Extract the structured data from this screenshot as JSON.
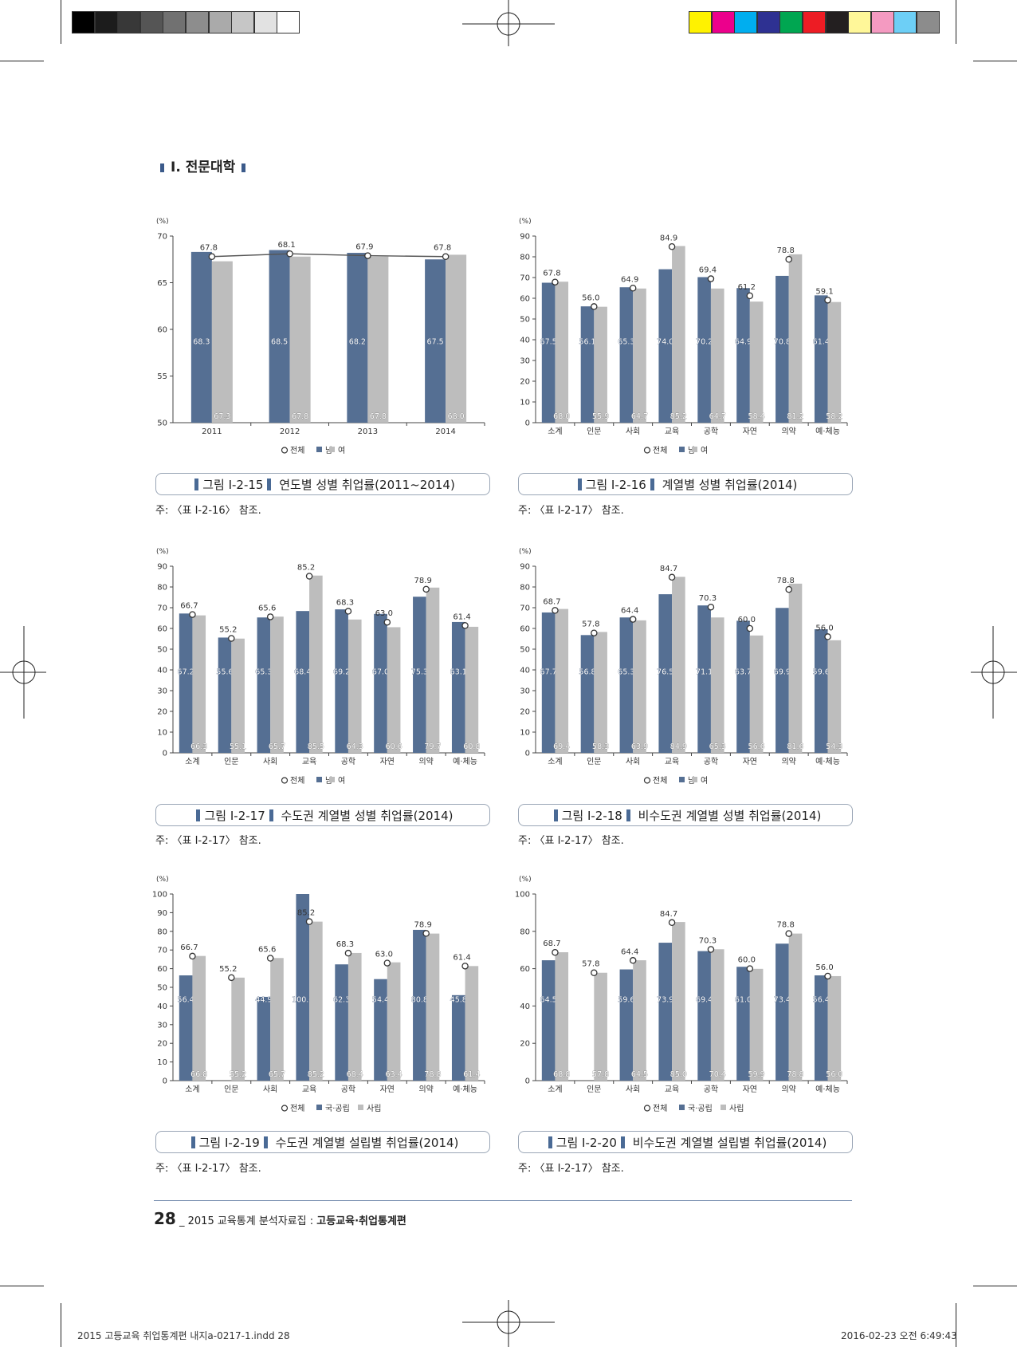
{
  "header": {
    "section_title": "Ⅰ. 전문대학",
    "gray_swatches": [
      "#000000",
      "#1c1c1c",
      "#383838",
      "#555555",
      "#717171",
      "#8d8d8d",
      "#aaaaaa",
      "#c6c6c6",
      "#e2e2e2",
      "#ffffff"
    ],
    "color_swatches": [
      "#fff200",
      "#ec008c",
      "#00aeef",
      "#2e3192",
      "#00a651",
      "#ed1c24",
      "#231f20",
      "#fff799",
      "#f49ac1",
      "#6dcff6",
      "#8c8c8c"
    ]
  },
  "colors": {
    "male": "#556f93",
    "female": "#bdbdbd",
    "total_line": "#555555"
  },
  "charts": [
    {
      "id": "fig-15",
      "unit": "(%)",
      "caption_label": "그림 Ⅰ-2-15",
      "caption_title": "연도별 성별 취업률(2011~2014)",
      "note": "주: 〈표 Ⅰ-2-16〉 참조.",
      "legend": [
        "전체",
        "남",
        "여"
      ]
    },
    {
      "id": "fig-16",
      "unit": "(%)",
      "caption_label": "그림 Ⅰ-2-16",
      "caption_title": "계열별 성별 취업률(2014)",
      "note": "주: 〈표 Ⅰ-2-17〉 참조.",
      "legend": [
        "전체",
        "남",
        "여"
      ]
    },
    {
      "id": "fig-17",
      "unit": "(%)",
      "caption_label": "그림 Ⅰ-2-17",
      "caption_title": "수도권 계열별 성별 취업률(2014)",
      "note": "주: 〈표 Ⅰ-2-17〉 참조.",
      "legend": [
        "전체",
        "남",
        "여"
      ]
    },
    {
      "id": "fig-18",
      "unit": "(%)",
      "caption_label": "그림 Ⅰ-2-18",
      "caption_title": "비수도권 계열별 성별 취업률(2014)",
      "note": "주: 〈표 Ⅰ-2-17〉 참조.",
      "legend": [
        "전체",
        "남",
        "여"
      ]
    },
    {
      "id": "fig-19",
      "unit": "(%)",
      "caption_label": "그림 Ⅰ-2-19",
      "caption_title": "수도권 계열별 설립별 취업률(2014)",
      "note": "주: 〈표 Ⅰ-2-17〉 참조.",
      "legend": [
        "전체",
        "국·공립",
        "사립"
      ]
    },
    {
      "id": "fig-20",
      "unit": "(%)",
      "caption_label": "그림 Ⅰ-2-20",
      "caption_title": "비수도권 계열별 설립별 취업률(2014)",
      "note": "주: 〈표 Ⅰ-2-17〉 참조.",
      "legend": [
        "전체",
        "국·공립",
        "사립"
      ]
    }
  ],
  "chart_data": [
    {
      "type": "bar",
      "categories": [
        "2011",
        "2012",
        "2013",
        "2014"
      ],
      "ylim": [
        50,
        70
      ],
      "yticks": [
        50,
        55,
        60,
        65,
        70
      ],
      "series": [
        {
          "name": "남",
          "values": [
            68.3,
            68.5,
            68.2,
            67.5
          ],
          "labels": [
            "68.3",
            "68.5",
            "68.2",
            "67.5"
          ]
        },
        {
          "name": "여",
          "values": [
            67.3,
            67.8,
            67.8,
            68.0
          ],
          "labels": [
            "67.3",
            "67.8",
            "67.8",
            "68.0"
          ]
        },
        {
          "name": "전체",
          "values": [
            67.8,
            68.1,
            67.9,
            67.8
          ],
          "labels": [
            "67.8",
            "68.1",
            "67.9",
            "67.8"
          ]
        }
      ]
    },
    {
      "type": "bar",
      "categories": [
        "소계",
        "인문",
        "사회",
        "교육",
        "공학",
        "자연",
        "의약",
        "예·체능"
      ],
      "ylim": [
        0,
        90
      ],
      "yticks": [
        0,
        10,
        20,
        30,
        40,
        50,
        60,
        70,
        80,
        90
      ],
      "series": [
        {
          "name": "남",
          "values": [
            67.5,
            56.1,
            65.3,
            74.0,
            70.2,
            64.9,
            70.8,
            61.4
          ],
          "labels": [
            "67.5",
            "56.1",
            "65.3",
            "74.0",
            "70.2",
            "64.9",
            "70.8",
            "61.4"
          ]
        },
        {
          "name": "여",
          "values": [
            68.0,
            55.9,
            64.7,
            85.2,
            64.7,
            58.4,
            81.2,
            58.2
          ],
          "labels": [
            "68.0",
            "55.9",
            "64.7",
            "85.2",
            "64.7",
            "58.4",
            "81.2",
            "58.2"
          ]
        },
        {
          "name": "전체",
          "values": [
            67.8,
            56.0,
            64.9,
            84.9,
            69.4,
            61.2,
            78.8,
            59.1
          ],
          "labels": [
            "67.8",
            "56.0",
            "64.9",
            "84.9",
            "69.4",
            "61.2",
            "78.8",
            "59.1"
          ]
        }
      ]
    },
    {
      "type": "bar",
      "categories": [
        "소계",
        "인문",
        "사회",
        "교육",
        "공학",
        "자연",
        "의약",
        "예·체능"
      ],
      "ylim": [
        0,
        90
      ],
      "yticks": [
        0,
        10,
        20,
        30,
        40,
        50,
        60,
        70,
        80,
        90
      ],
      "series": [
        {
          "name": "남",
          "values": [
            67.2,
            55.6,
            65.3,
            68.4,
            69.2,
            67.0,
            75.3,
            63.1
          ],
          "labels": [
            "67.2",
            "55.6",
            "65.3",
            "68.4",
            "69.2",
            "67.0",
            "75.3",
            "63.1"
          ]
        },
        {
          "name": "여",
          "values": [
            66.3,
            55.1,
            65.7,
            85.5,
            64.3,
            60.6,
            79.7,
            60.8
          ],
          "labels": [
            "66.3",
            "55.1",
            "65.7",
            "85.5",
            "64.3",
            "60.6",
            "79.7",
            "60.8"
          ]
        },
        {
          "name": "전체",
          "values": [
            66.7,
            55.2,
            65.6,
            85.2,
            68.3,
            63.0,
            78.9,
            61.4
          ],
          "labels": [
            "66.7",
            "55.2",
            "65.6",
            "85.2",
            "68.3",
            "63.0",
            "78.9",
            "61.4"
          ]
        }
      ]
    },
    {
      "type": "bar",
      "categories": [
        "소계",
        "인문",
        "사회",
        "교육",
        "공학",
        "자연",
        "의약",
        "예·체능"
      ],
      "ylim": [
        0,
        90
      ],
      "yticks": [
        0,
        10,
        20,
        30,
        40,
        50,
        60,
        70,
        80,
        90
      ],
      "series": [
        {
          "name": "남",
          "values": [
            67.7,
            56.8,
            65.3,
            76.5,
            71.1,
            63.7,
            69.9,
            59.6
          ],
          "labels": [
            "67.7",
            "56.8",
            "65.3",
            "76.5",
            "71.1",
            "63.7",
            "69.9",
            "59.6"
          ]
        },
        {
          "name": "여",
          "values": [
            69.4,
            58.3,
            63.9,
            84.9,
            65.3,
            56.6,
            81.6,
            54.3
          ],
          "labels": [
            "69.4",
            "58.3",
            "63.9",
            "84.9",
            "65.3",
            "56.6",
            "81.6",
            "54.3"
          ]
        },
        {
          "name": "전체",
          "values": [
            68.7,
            57.8,
            64.4,
            84.7,
            70.3,
            60.0,
            78.8,
            56.0
          ],
          "labels": [
            "68.7",
            "57.8",
            "64.4",
            "84.7",
            "70.3",
            "60.0",
            "78.8",
            "56.0"
          ]
        }
      ]
    },
    {
      "type": "bar",
      "categories": [
        "소계",
        "인문",
        "사회",
        "교육",
        "공학",
        "자연",
        "의약",
        "예·체능"
      ],
      "ylim": [
        0,
        100
      ],
      "yticks": [
        0,
        10,
        20,
        30,
        40,
        50,
        60,
        70,
        80,
        90,
        100
      ],
      "series": [
        {
          "name": "국·공립",
          "values": [
            56.4,
            null,
            44.9,
            100.0,
            62.3,
            54.4,
            80.8,
            45.8
          ],
          "labels": [
            "56.4",
            "",
            "44.9",
            "100.0",
            "62.3",
            "54.4",
            "80.8",
            "45.8"
          ]
        },
        {
          "name": "사립",
          "values": [
            66.8,
            55.2,
            65.7,
            85.2,
            68.4,
            63.4,
            78.8,
            61.4
          ],
          "labels": [
            "66.8",
            "55.2",
            "65.7",
            "85.2",
            "68.4",
            "63.4",
            "78.8",
            "61.4"
          ]
        },
        {
          "name": "전체",
          "values": [
            66.7,
            55.2,
            65.6,
            85.2,
            68.3,
            63.0,
            78.9,
            61.4
          ],
          "labels": [
            "66.7",
            "55.2",
            "65.6",
            "85.2",
            "68.3",
            "63.0",
            "78.9",
            "61.4"
          ]
        }
      ]
    },
    {
      "type": "bar",
      "categories": [
        "소계",
        "인문",
        "사회",
        "교육",
        "공학",
        "자연",
        "의약",
        "예·체능"
      ],
      "ylim": [
        0,
        100
      ],
      "yticks": [
        0,
        20,
        40,
        60,
        80,
        100
      ],
      "series": [
        {
          "name": "국·공립",
          "values": [
            64.5,
            null,
            59.6,
            73.9,
            69.4,
            61.0,
            73.4,
            56.4
          ],
          "labels": [
            "64.5",
            "",
            "59.6",
            "73.9",
            "69.4",
            "61.0",
            "73.4",
            "56.4"
          ]
        },
        {
          "name": "사립",
          "values": [
            68.8,
            57.8,
            64.5,
            85.0,
            70.4,
            59.9,
            78.8,
            56.0
          ],
          "labels": [
            "68.8",
            "57.8",
            "64.5",
            "85.0",
            "70.4",
            "59.9",
            "78.8",
            "56.0"
          ]
        },
        {
          "name": "전체",
          "values": [
            68.7,
            57.8,
            64.4,
            84.7,
            70.3,
            60.0,
            78.8,
            56.0
          ],
          "labels": [
            "68.7",
            "57.8",
            "64.4",
            "84.7",
            "70.3",
            "60.0",
            "78.8",
            "56.0"
          ]
        }
      ]
    }
  ],
  "footer": {
    "page_number": "28",
    "separator": "_",
    "book_title": "2015 교육통계 분석자료집 :",
    "book_subtitle": "고등교육·취업통계편"
  },
  "slug": {
    "file": "2015 고등교육 취업통계편 내지a-0217-1.indd   28",
    "timestamp": "2016-02-23   오전 6:49:43"
  }
}
